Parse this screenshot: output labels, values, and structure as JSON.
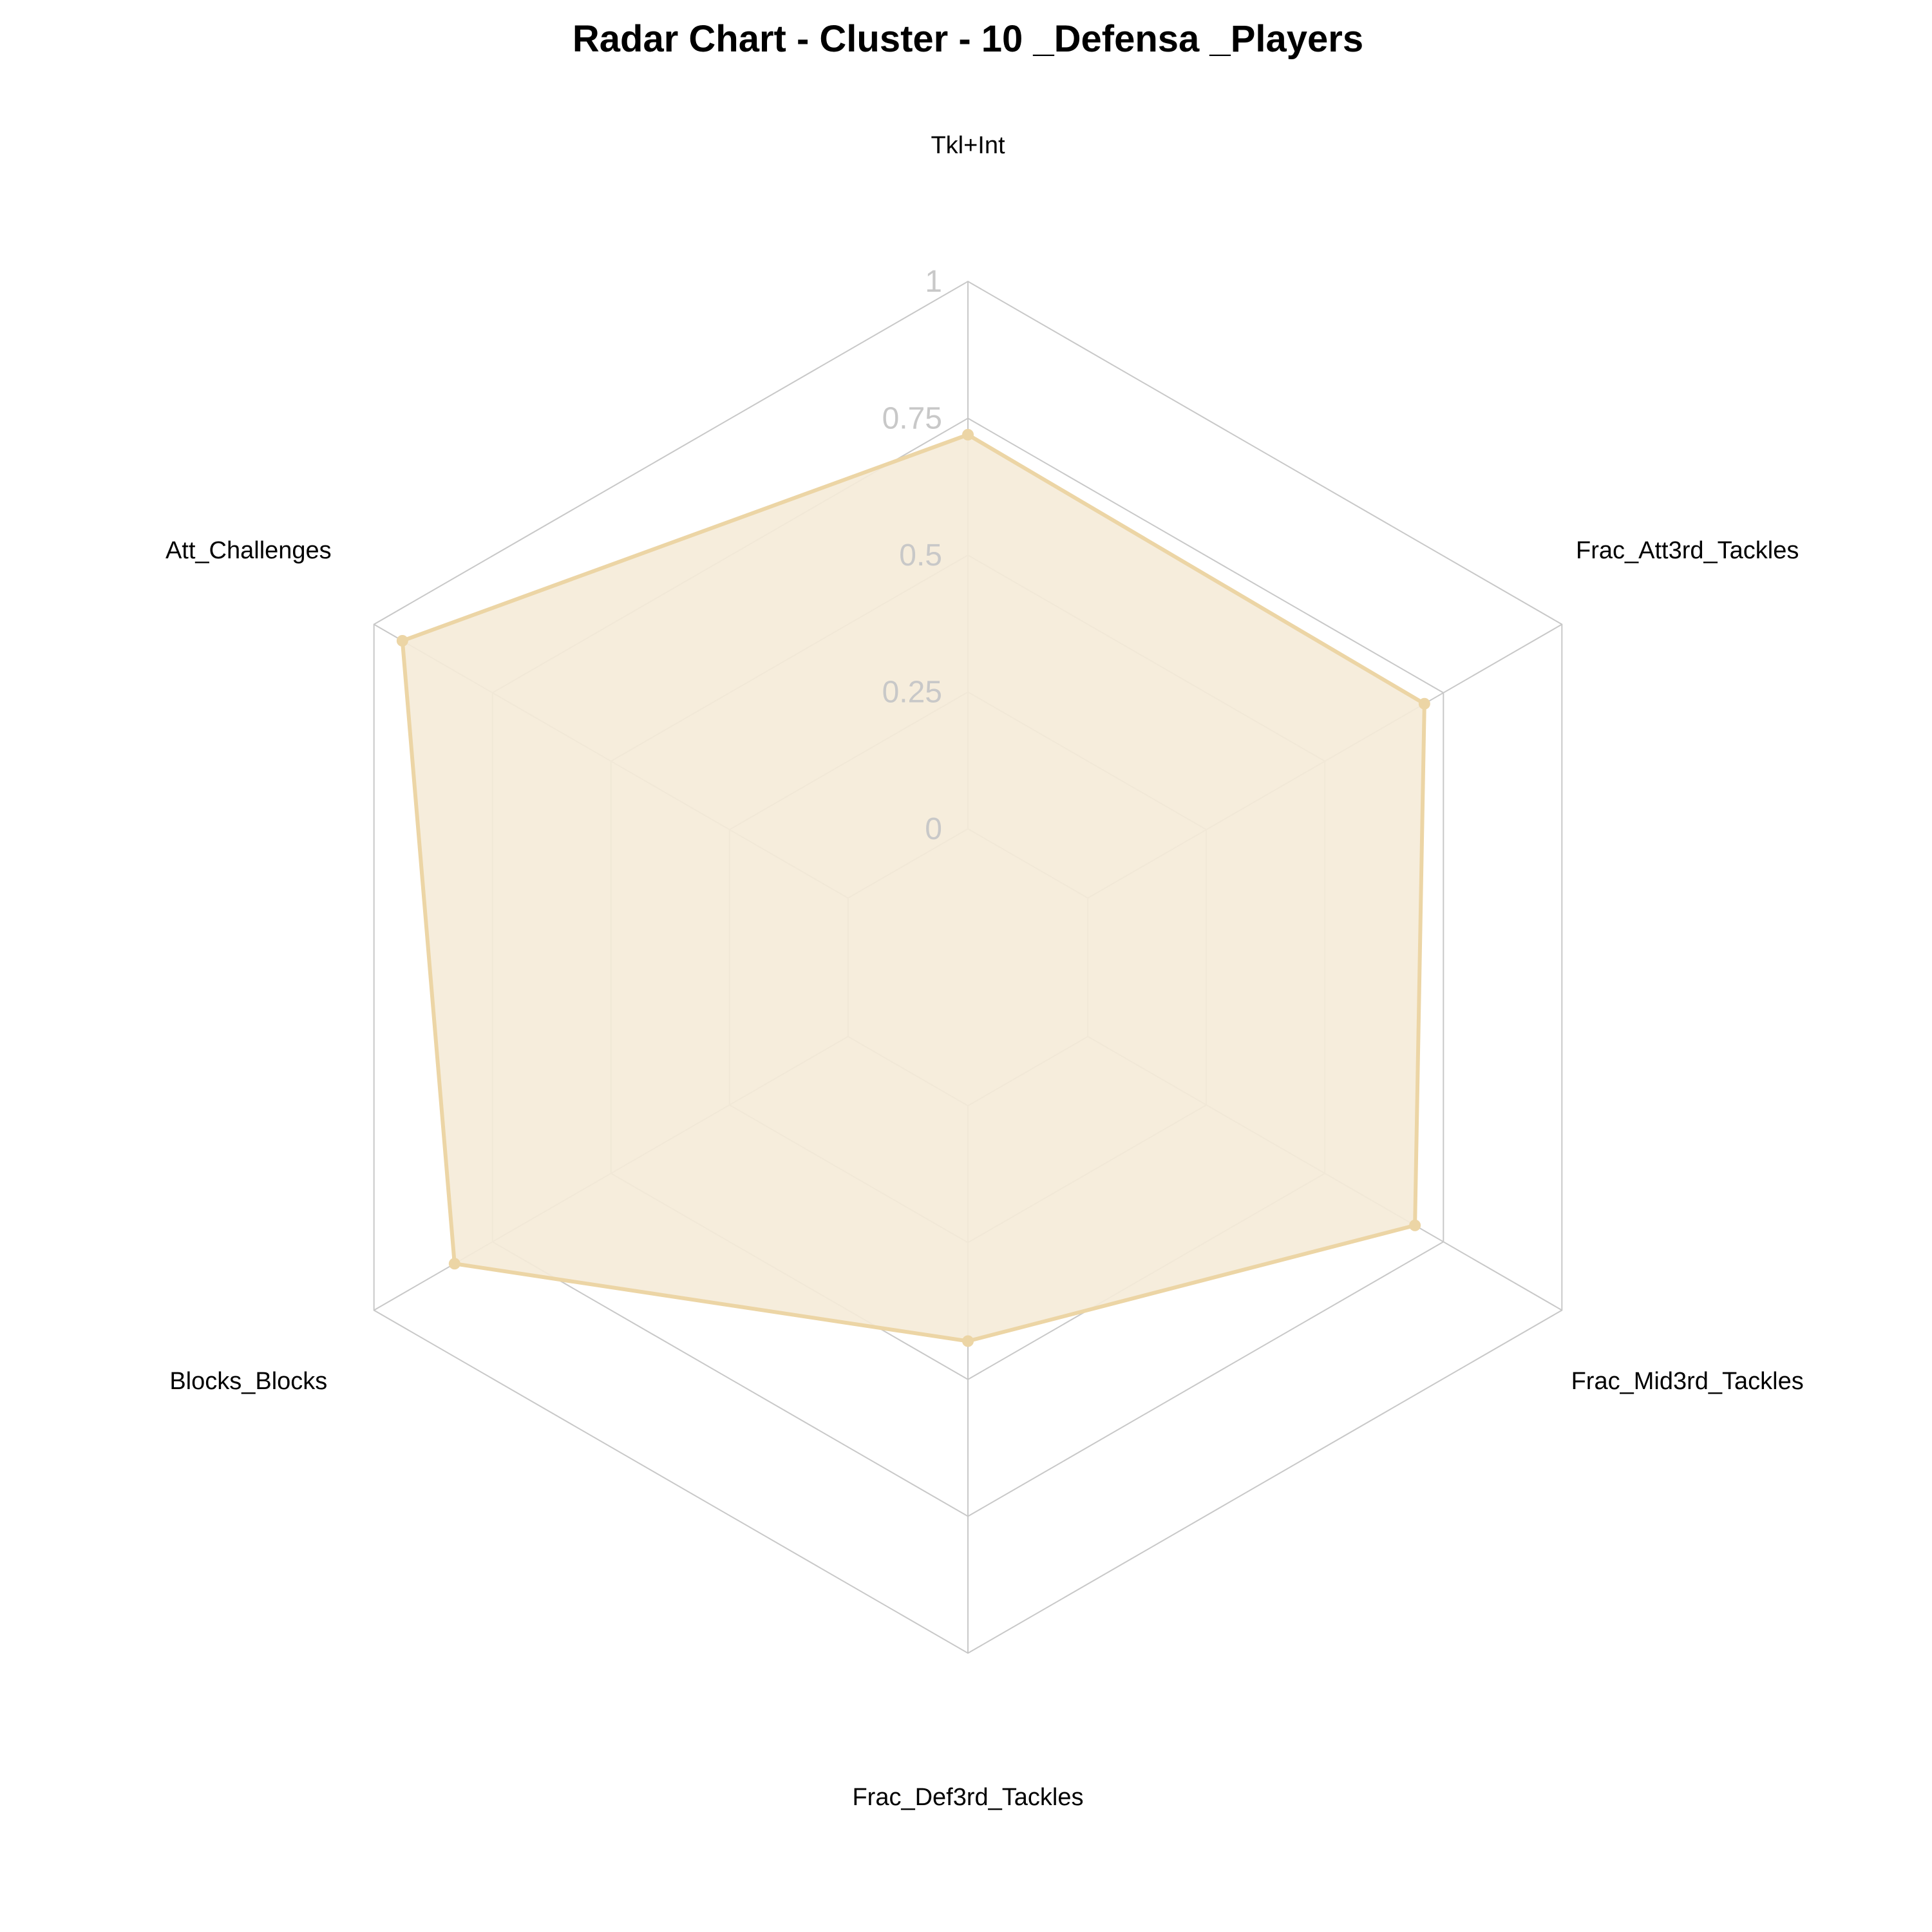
{
  "colors": {
    "series_line": "#ecd5a5",
    "series_fill": "#f5ebd8",
    "grid": "#c8c8c8",
    "tick_text": "#c8c8c8",
    "label_text": "#000000"
  },
  "chart_data": {
    "type": "radar",
    "title": "Radar Chart - Cluster - 10 _Defensa _Players",
    "axes": [
      "Tkl+Int",
      "Frac_Att3rd_Tackles",
      "Frac_Mid3rd_Tackles",
      "Frac_Def3rd_Tackles",
      "Blocks_Blocks",
      "Att_Challenges"
    ],
    "radial_ticks": [
      "0",
      "0.25",
      "0.5",
      "0.75",
      "1"
    ],
    "tick_values": [
      0,
      0.25,
      0.5,
      0.75,
      1
    ],
    "range": [
      0,
      1
    ],
    "grid": true,
    "legend": "none",
    "series": [
      {
        "values": [
          0.72,
          0.71,
          0.69,
          0.43,
          0.83,
          0.94
        ]
      }
    ]
  }
}
